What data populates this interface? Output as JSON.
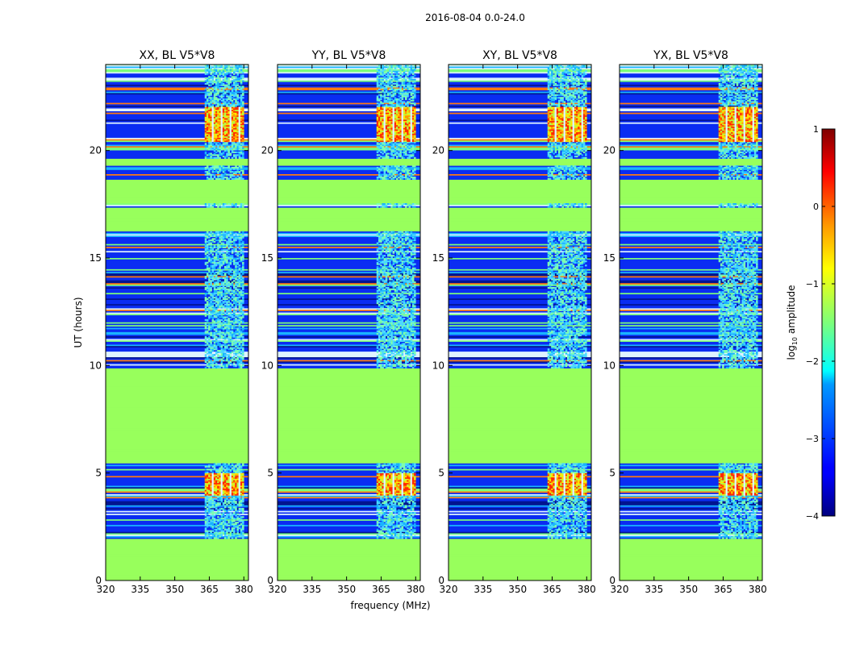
{
  "chart_data": {
    "type": "heatmap",
    "suptitle": "2016-08-04 0.0-24.0",
    "xlabel": "frequency (MHz)",
    "ylabel": "UT (hours)",
    "xlim": [
      320,
      382
    ],
    "ylim": [
      0,
      24
    ],
    "xticks": [
      320,
      335,
      350,
      365,
      380
    ],
    "yticks": [
      0,
      5,
      10,
      15,
      20
    ],
    "panels": [
      {
        "title": "XX, BL V5*V8"
      },
      {
        "title": "YY, BL V5*V8"
      },
      {
        "title": "XY, BL V5*V8"
      },
      {
        "title": "YX, BL V5*V8"
      }
    ],
    "colorbar": {
      "label_base": "log",
      "label_sub": "10",
      "label_rest": " amplitude",
      "range": [
        -4,
        1
      ],
      "ticks": [
        1,
        0,
        -1,
        -2,
        -3,
        -4
      ],
      "tick_labels": [
        "1",
        "0",
        "−1",
        "−2",
        "−3",
        "−4"
      ],
      "colormap": "jet"
    },
    "flagged_ut_ranges": [
      [
        0,
        1.9
      ],
      [
        5.45,
        9.85
      ],
      [
        16.2,
        17.3
      ],
      [
        17.5,
        18.6
      ],
      [
        19.3,
        19.6
      ]
    ],
    "bright_freq_band_mhz": [
      363,
      380
    ],
    "strong_rfi_ut_ranges": [
      [
        3.9,
        5.0
      ],
      [
        20.4,
        22.0
      ]
    ]
  }
}
